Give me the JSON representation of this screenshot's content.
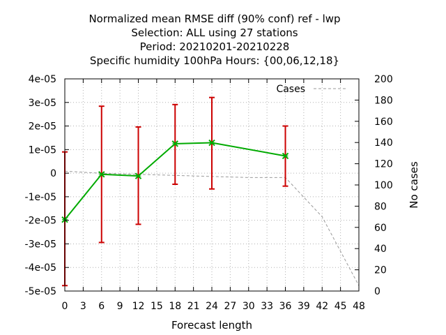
{
  "chart_data": {
    "type": "line",
    "title_lines": [
      "Normalized mean RMSE diff (90% conf) ref - lwp",
      "Selection: ALL using    27 stations",
      "Period: 20210201-20210228",
      "Specific humidity 100hPa   Hours: {00,06,12,18}"
    ],
    "xlabel": "Forecast length",
    "ylabel": "",
    "y2label": "No cases",
    "xlim": [
      0,
      48
    ],
    "ylim": [
      -5e-05,
      4e-05
    ],
    "y2lim": [
      0,
      200
    ],
    "x_ticks": [
      "0",
      "3",
      "6",
      "9",
      "12",
      "15",
      "18",
      "21",
      "24",
      "27",
      "30",
      "33",
      "36",
      "39",
      "42",
      "45",
      "48"
    ],
    "y_ticks": [
      "-5e-05",
      "-4e-05",
      "-3e-05",
      "-2e-05",
      "-1e-05",
      "0",
      "1e-05",
      "2e-05",
      "3e-05",
      "4e-05"
    ],
    "y2_ticks": [
      "0",
      "20",
      "40",
      "60",
      "80",
      "100",
      "120",
      "140",
      "160",
      "180",
      "200"
    ],
    "grid": true,
    "legend_position": "top-right",
    "series": [
      {
        "name": "",
        "axis": "left",
        "color": "#00aa00",
        "marker": "x",
        "x": [
          0,
          6,
          12,
          18,
          24,
          36
        ],
        "y": [
          -1.97e-05,
          -5e-07,
          -1.2e-06,
          1.25e-05,
          1.29e-05,
          7.3e-06
        ],
        "err_low": [
          -4.77e-05,
          -2.94e-05,
          -2.17e-05,
          -4.7e-06,
          -6.7e-06,
          -5.5e-06
        ],
        "err_high": [
          9e-06,
          2.84e-05,
          1.96e-05,
          2.91e-05,
          3.21e-05,
          2e-05
        ],
        "err_color": "#cc0000"
      },
      {
        "name": "Cases",
        "axis": "right",
        "color": "#999999",
        "dash": true,
        "x": [
          0,
          6,
          12,
          18,
          24,
          30,
          36,
          42,
          48
        ],
        "y": [
          113,
          111,
          110,
          109,
          108,
          107,
          107,
          70,
          5
        ]
      }
    ]
  }
}
